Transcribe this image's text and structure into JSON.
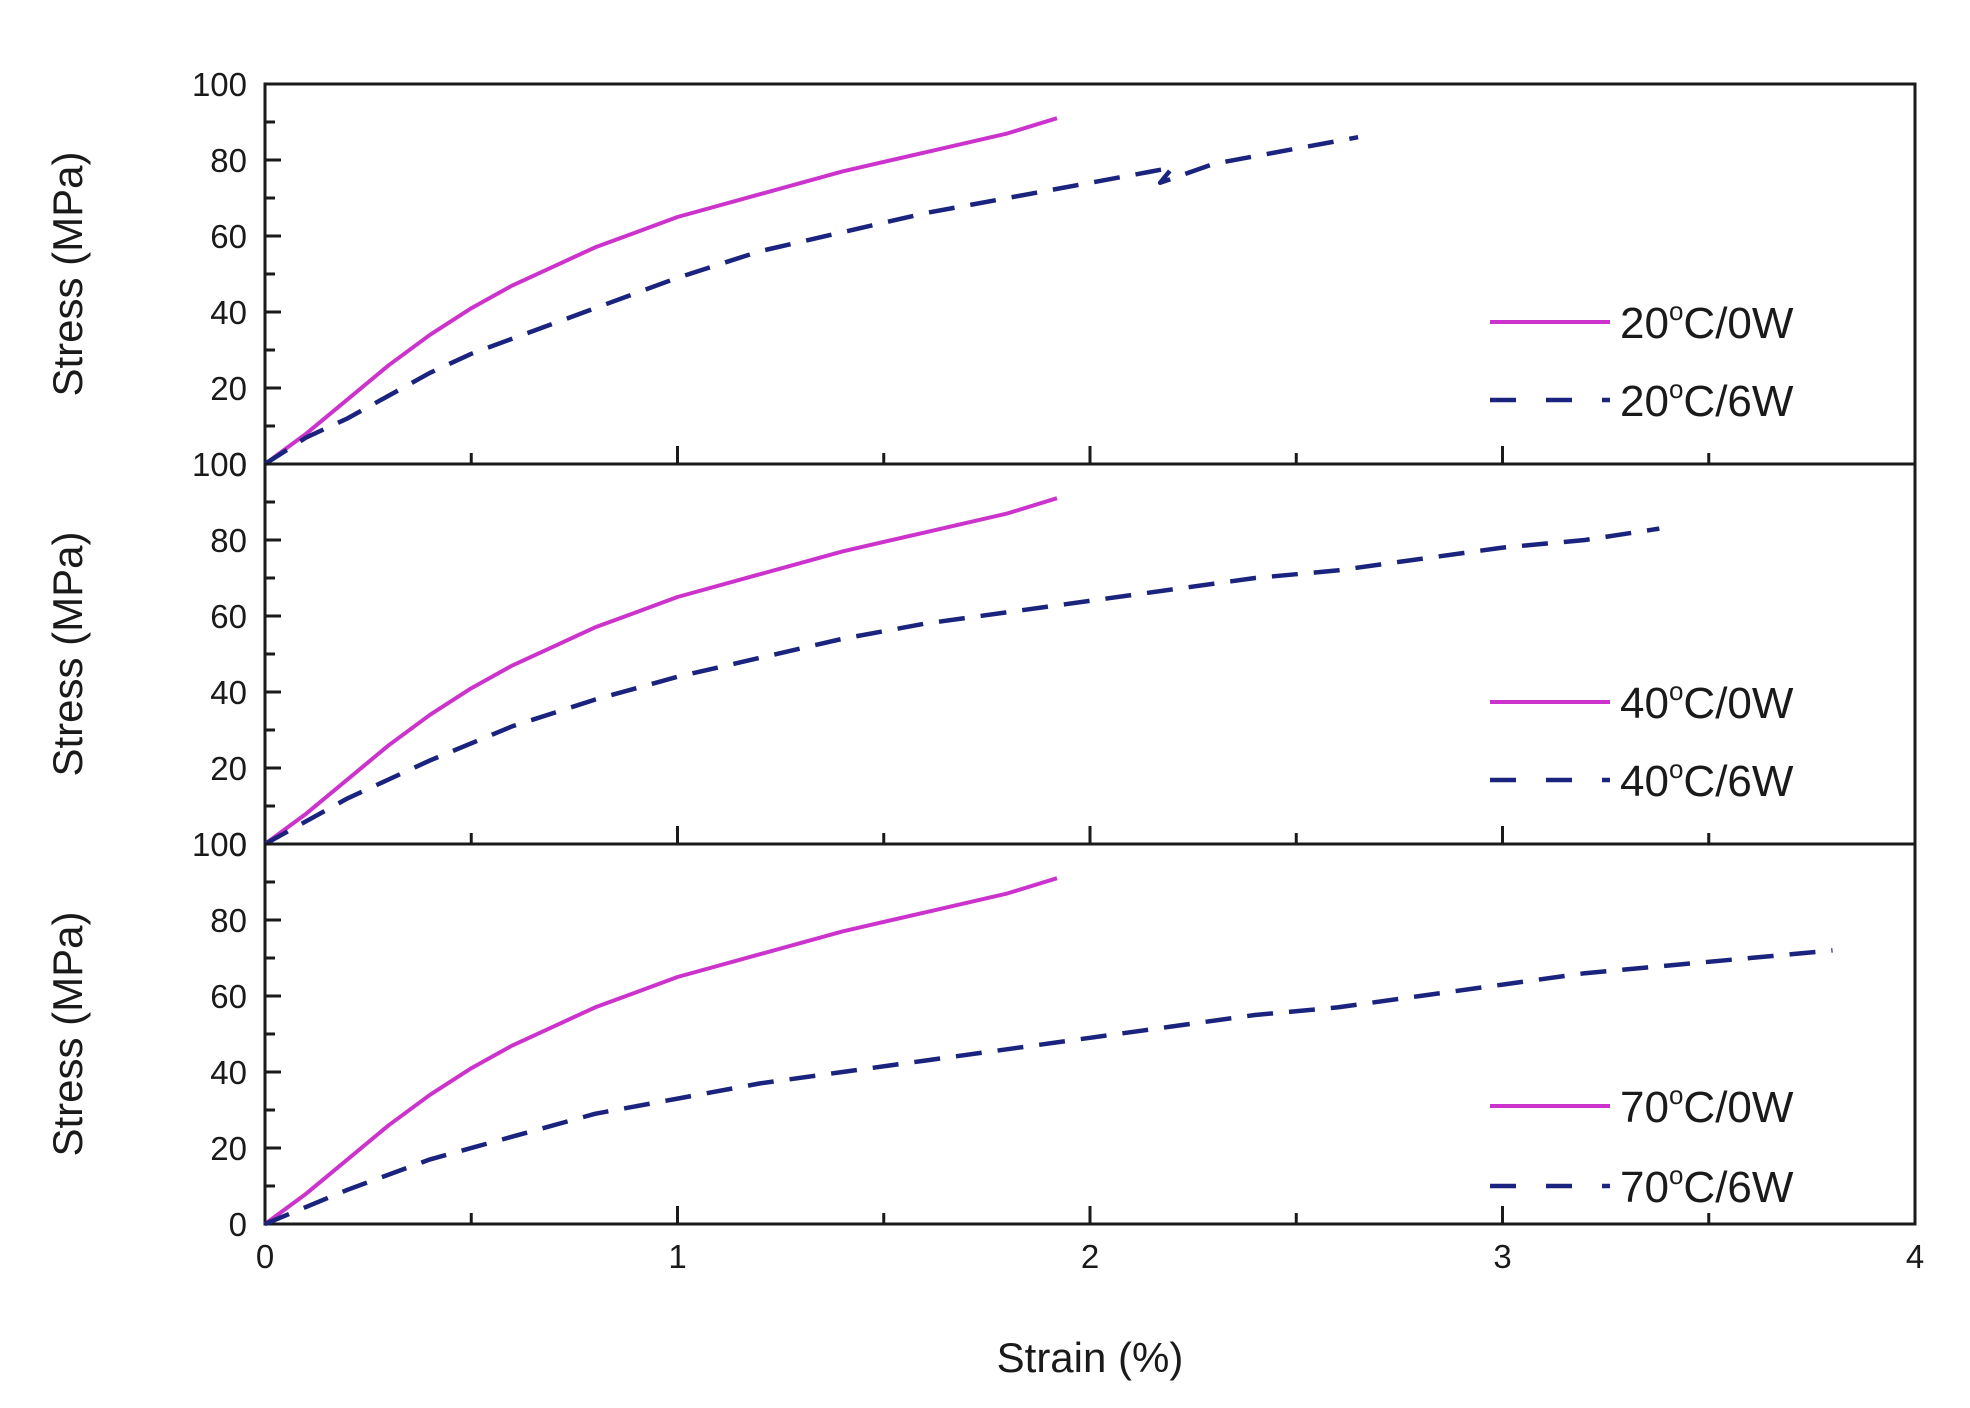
{
  "chart_data": {
    "type": "line",
    "xlabel": "Strain (%)",
    "ylabel": "Stress (MPa)",
    "xlim": [
      0,
      4
    ],
    "ylim": [
      0,
      100
    ],
    "x_ticks": [
      "0",
      "1",
      "2",
      "3",
      "4"
    ],
    "y_ticks": [
      "0",
      "20",
      "40",
      "60",
      "80",
      "100"
    ],
    "legend_position": "right",
    "colors": {
      "solid": "#cc33cc",
      "dashed": "#1a237e"
    },
    "panels": [
      {
        "series": [
          {
            "name": "20",
            "label_suffix": "C/0W",
            "style": "solid",
            "x": [
              0,
              0.1,
              0.2,
              0.3,
              0.4,
              0.5,
              0.6,
              0.7,
              0.8,
              0.9,
              1.0,
              1.2,
              1.4,
              1.6,
              1.8,
              1.92
            ],
            "y": [
              0,
              8,
              17,
              26,
              34,
              41,
              47,
              52,
              57,
              61,
              65,
              71,
              77,
              82,
              87,
              91
            ]
          },
          {
            "name": "20",
            "label_suffix": "C/6W",
            "style": "dashed",
            "x": [
              0,
              0.1,
              0.2,
              0.3,
              0.4,
              0.5,
              0.6,
              0.8,
              1.0,
              1.2,
              1.4,
              1.6,
              1.8,
              2.0,
              2.15,
              2.2,
              2.17,
              2.3,
              2.5,
              2.65
            ],
            "y": [
              0,
              7,
              12,
              18,
              24,
              29,
              33,
              41,
              49,
              56,
              61,
              66,
              70,
              74,
              77,
              78,
              74,
              79,
              83,
              86
            ]
          }
        ]
      },
      {
        "series": [
          {
            "name": "40",
            "label_suffix": "C/0W",
            "style": "solid",
            "x": [
              0,
              0.1,
              0.2,
              0.3,
              0.4,
              0.5,
              0.6,
              0.7,
              0.8,
              0.9,
              1.0,
              1.2,
              1.4,
              1.6,
              1.8,
              1.92
            ],
            "y": [
              0,
              8,
              17,
              26,
              34,
              41,
              47,
              52,
              57,
              61,
              65,
              71,
              77,
              82,
              87,
              91
            ]
          },
          {
            "name": "40",
            "label_suffix": "C/6W",
            "style": "dashed",
            "x": [
              0,
              0.2,
              0.4,
              0.6,
              0.8,
              1.0,
              1.2,
              1.4,
              1.6,
              1.8,
              2.0,
              2.2,
              2.4,
              2.6,
              2.8,
              3.0,
              3.2,
              3.38
            ],
            "y": [
              0,
              12,
              22,
              31,
              38,
              44,
              49,
              54,
              58,
              61,
              64,
              67,
              70,
              72,
              75,
              78,
              80,
              83
            ]
          }
        ]
      },
      {
        "series": [
          {
            "name": "70",
            "label_suffix": "C/0W",
            "style": "solid",
            "x": [
              0,
              0.1,
              0.2,
              0.3,
              0.4,
              0.5,
              0.6,
              0.7,
              0.8,
              0.9,
              1.0,
              1.2,
              1.4,
              1.6,
              1.8,
              1.92
            ],
            "y": [
              0,
              8,
              17,
              26,
              34,
              41,
              47,
              52,
              57,
              61,
              65,
              71,
              77,
              82,
              87,
              91
            ]
          },
          {
            "name": "70",
            "label_suffix": "C/6W",
            "style": "dashed",
            "x": [
              0,
              0.2,
              0.4,
              0.6,
              0.8,
              1.0,
              1.2,
              1.4,
              1.6,
              1.8,
              2.0,
              2.2,
              2.4,
              2.6,
              2.8,
              3.0,
              3.2,
              3.4,
              3.6,
              3.8
            ],
            "y": [
              0,
              9,
              17,
              23,
              29,
              33,
              37,
              40,
              43,
              46,
              49,
              52,
              55,
              57,
              60,
              63,
              66,
              68,
              70,
              72
            ]
          }
        ]
      }
    ]
  }
}
